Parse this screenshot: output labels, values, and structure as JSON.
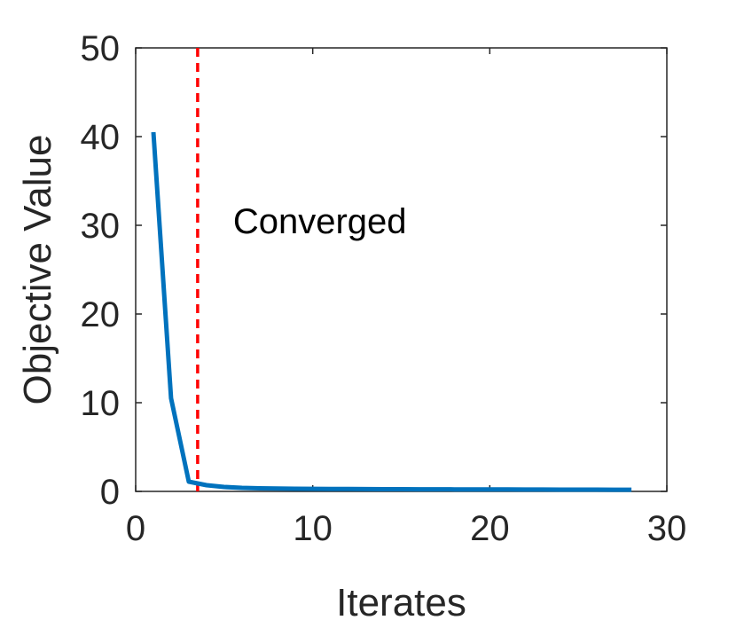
{
  "chart_data": {
    "type": "line",
    "title": "",
    "xlabel": "Iterates",
    "ylabel": "Objective Value",
    "xlim": [
      0,
      30
    ],
    "ylim": [
      0,
      50
    ],
    "xticks": [
      0,
      10,
      20,
      30
    ],
    "yticks": [
      0,
      10,
      20,
      30,
      40,
      50
    ],
    "grid": false,
    "legend": "none",
    "series": [
      {
        "color": "#0072BD",
        "x": [
          1,
          2,
          3,
          4,
          5,
          6,
          7,
          8,
          9,
          10,
          11,
          12,
          13,
          14,
          15,
          16,
          17,
          18,
          19,
          20,
          21,
          22,
          23,
          24,
          25,
          26,
          27,
          28
        ],
        "y": [
          40.5,
          10.5,
          1.1,
          0.7,
          0.5,
          0.4,
          0.35,
          0.32,
          0.3,
          0.29,
          0.28,
          0.27,
          0.26,
          0.25,
          0.25,
          0.24,
          0.24,
          0.23,
          0.23,
          0.22,
          0.22,
          0.21,
          0.21,
          0.2,
          0.2,
          0.2,
          0.19,
          0.19
        ]
      }
    ],
    "reference_line": {
      "orientation": "vertical",
      "x": 3.5,
      "color": "#FF0000",
      "style": "dashed"
    },
    "annotations": [
      {
        "text": "Converged",
        "x": 5.5,
        "y": 30.5
      }
    ]
  }
}
